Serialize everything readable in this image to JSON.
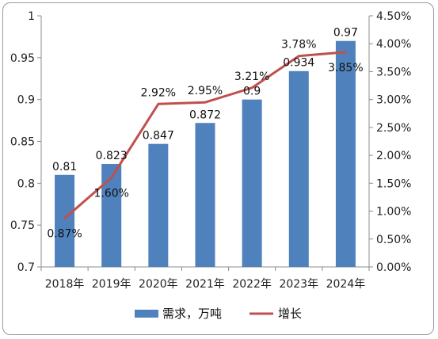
{
  "chart_data": {
    "type": "bar+line",
    "categories": [
      "2018年",
      "2019年",
      "2020年",
      "2021年",
      "2022年",
      "2023年",
      "2024年"
    ],
    "series": [
      {
        "name": "需求，万吨",
        "type": "bar",
        "axis": "left",
        "values": [
          0.81,
          0.823,
          0.847,
          0.872,
          0.9,
          0.934,
          0.97
        ],
        "labels": [
          "0.81",
          "0.823",
          "0.847",
          "0.872",
          "0.9",
          "0.934",
          "0.97"
        ],
        "color": "#4f81bd"
      },
      {
        "name": "增长",
        "type": "line",
        "axis": "right",
        "values": [
          0.0087,
          0.016,
          0.0292,
          0.0295,
          0.0321,
          0.0378,
          0.0385
        ],
        "labels": [
          "0.87%",
          "1.60%",
          "2.92%",
          "2.95%",
          "3.21%",
          "3.78%",
          "3.85%"
        ],
        "color": "#c0504d"
      }
    ],
    "left_axis": {
      "ylim": [
        0.7,
        1.0
      ],
      "ticks": [
        0.7,
        0.75,
        0.8,
        0.85,
        0.9,
        0.95,
        1
      ],
      "tick_labels": [
        "0.7",
        "0.75",
        "0.8",
        "0.85",
        "0.9",
        "0.95",
        "1"
      ]
    },
    "right_axis": {
      "ylim": [
        0,
        0.045
      ],
      "ticks": [
        0,
        0.005,
        0.01,
        0.015,
        0.02,
        0.025,
        0.03,
        0.035,
        0.04,
        0.045
      ],
      "tick_labels": [
        "0.00%",
        "0.50%",
        "1.00%",
        "1.50%",
        "2.00%",
        "2.50%",
        "3.00%",
        "3.50%",
        "4.00%",
        "4.50%"
      ]
    },
    "grid": false,
    "legend_position": "bottom"
  }
}
